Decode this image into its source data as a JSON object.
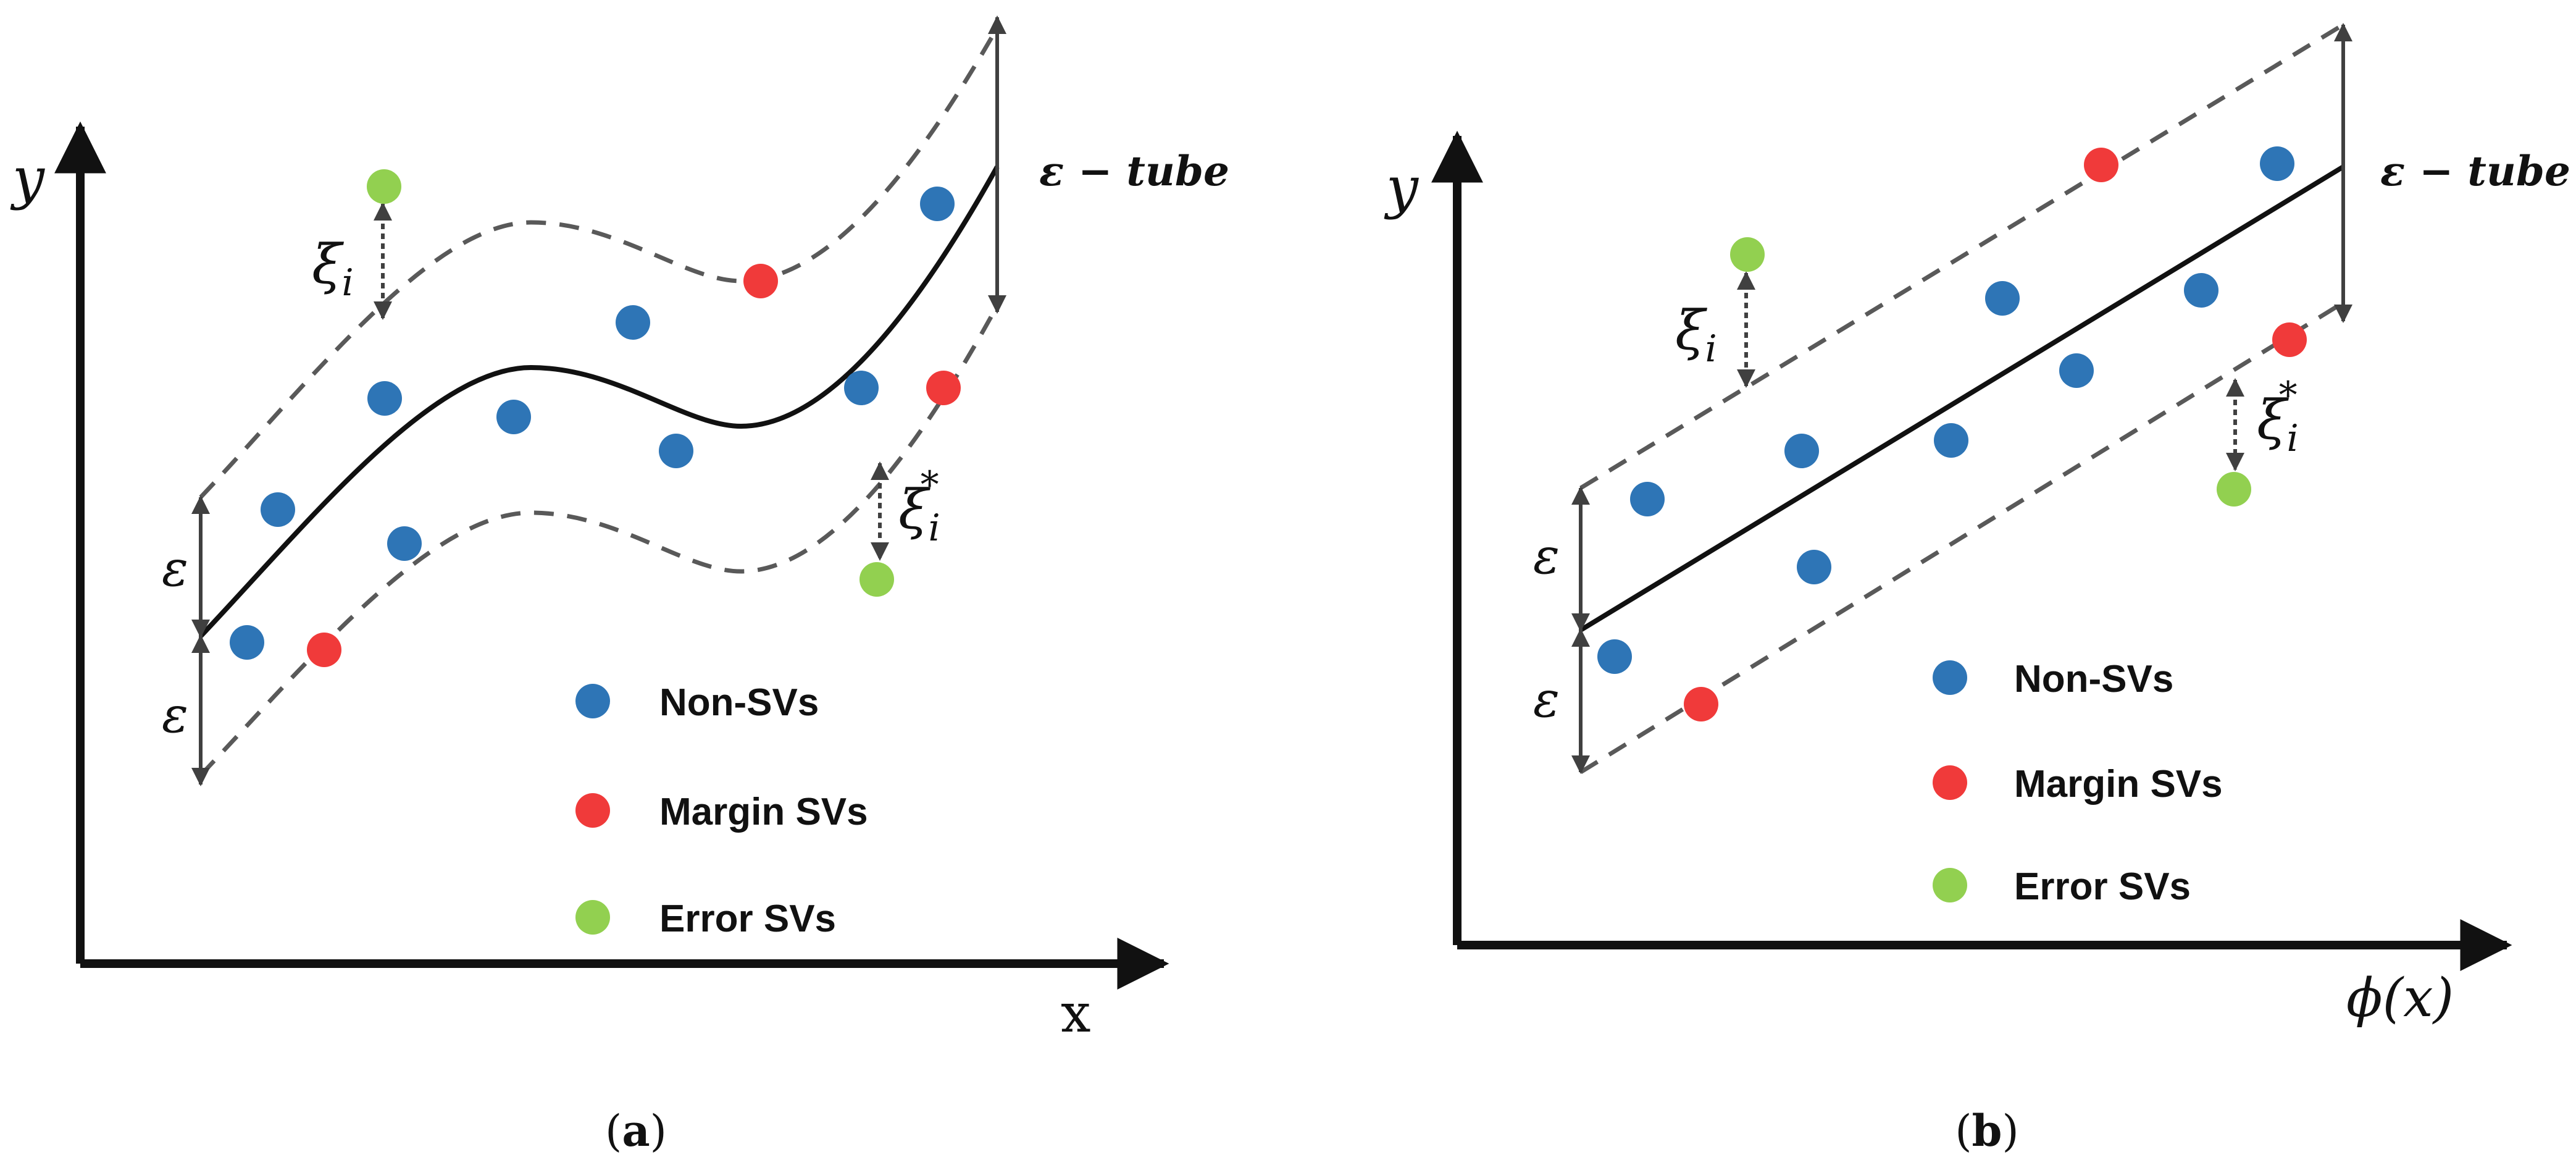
{
  "colors": {
    "non_sv": "#2E75B6",
    "margin_sv": "#F03A3A",
    "error_sv": "#92D050",
    "axis": "#111111",
    "dashed": "#595959",
    "arrow": "#404040"
  },
  "panel_a": {
    "y_label": "y",
    "x_label": "x",
    "tube_label": "ε − tube",
    "epsilon_upper": "ε",
    "epsilon_lower": "ε",
    "xi_symbol": "ξ",
    "xi_sub": "i",
    "xi_star_symbol": "ξ",
    "xi_star_sub": "i",
    "xi_star_sup": "*",
    "caption_open": "(",
    "caption_letter": "a",
    "caption_close": ")",
    "legend": [
      {
        "label": "Non-SVs",
        "type": "non_sv"
      },
      {
        "label": "Margin SVs",
        "type": "margin_sv"
      },
      {
        "label": "Error SVs",
        "type": "error_sv"
      }
    ]
  },
  "panel_b": {
    "y_label": "y",
    "x_label_phi": "ϕ",
    "x_label_arg": "(x)",
    "tube_label": "ε − tube",
    "epsilon_upper": "ε",
    "epsilon_lower": "ε",
    "xi_symbol": "ξ",
    "xi_sub": "i",
    "xi_star_symbol": "ξ",
    "xi_star_sub": "i",
    "xi_star_sup": "*",
    "caption_open": "(",
    "caption_letter": "b",
    "caption_close": ")",
    "legend": [
      {
        "label": "Non-SVs",
        "type": "non_sv"
      },
      {
        "label": "Margin SVs",
        "type": "margin_sv"
      },
      {
        "label": "Error SVs",
        "type": "error_sv"
      }
    ]
  }
}
